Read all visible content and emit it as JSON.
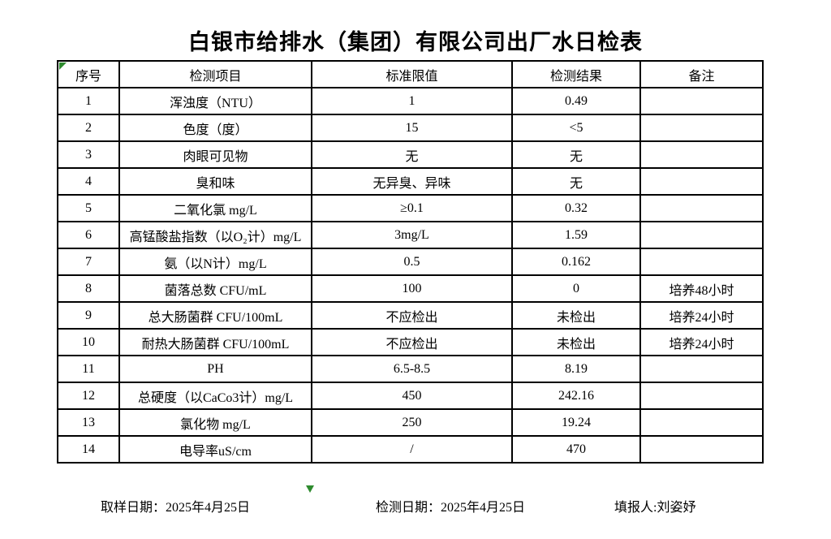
{
  "title": "白银市给排水（集团）有限公司出厂水日检表",
  "colors": {
    "background": "#ffffff",
    "text": "#000000",
    "border": "#000000",
    "marker_green": "#2e8b2e"
  },
  "table": {
    "headers": [
      "序号",
      "检测项目",
      "标准限值",
      "检测结果",
      "备注"
    ],
    "rows": [
      {
        "no": "1",
        "item": "浑浊度（NTU）",
        "limit": "1",
        "result": "0.49",
        "remark": ""
      },
      {
        "no": "2",
        "item": "色度（度）",
        "limit": "15",
        "result": "<5",
        "remark": ""
      },
      {
        "no": "3",
        "item": "肉眼可见物",
        "limit": "无",
        "result": "无",
        "remark": ""
      },
      {
        "no": "4",
        "item": "臭和味",
        "limit": "无异臭、异味",
        "result": "无",
        "remark": ""
      },
      {
        "no": "5",
        "item": "二氧化氯 mg/L",
        "limit": "≥0.1",
        "result": "0.32",
        "remark": ""
      },
      {
        "no": "6",
        "item": "高锰酸盐指数（以O₂计）mg/L",
        "limit": "3mg/L",
        "result": "1.59",
        "remark": ""
      },
      {
        "no": "7",
        "item": "氨（以N计）mg/L",
        "limit": "0.5",
        "result": "0.162",
        "remark": ""
      },
      {
        "no": "8",
        "item": "菌落总数 CFU/mL",
        "limit": "100",
        "result": "0",
        "remark": "培养48小时"
      },
      {
        "no": "9",
        "item": "总大肠菌群 CFU/100mL",
        "limit": "不应检出",
        "result": "未检出",
        "remark": "培养24小时"
      },
      {
        "no": "10",
        "item": "耐热大肠菌群 CFU/100mL",
        "limit": "不应检出",
        "result": "未检出",
        "remark": "培养24小时"
      },
      {
        "no": "11",
        "item": "PH",
        "limit": "6.5-8.5",
        "result": "8.19",
        "remark": ""
      },
      {
        "no": "12",
        "item": "总硬度（以CaCo3计）mg/L",
        "limit": "450",
        "result": "242.16",
        "remark": ""
      },
      {
        "no": "13",
        "item": "氯化物 mg/L",
        "limit": "250",
        "result": "19.24",
        "remark": ""
      },
      {
        "no": "14",
        "item": "电导率uS/cm",
        "limit": "/",
        "result": "470",
        "remark": ""
      }
    ]
  },
  "footer": {
    "sampling_date_label": "取样日期：",
    "sampling_date": "2025年4月25日",
    "testing_date_label": "检测日期：",
    "testing_date": "2025年4月25日",
    "reporter_label": "填报人:",
    "reporter": "刘姿妤"
  }
}
